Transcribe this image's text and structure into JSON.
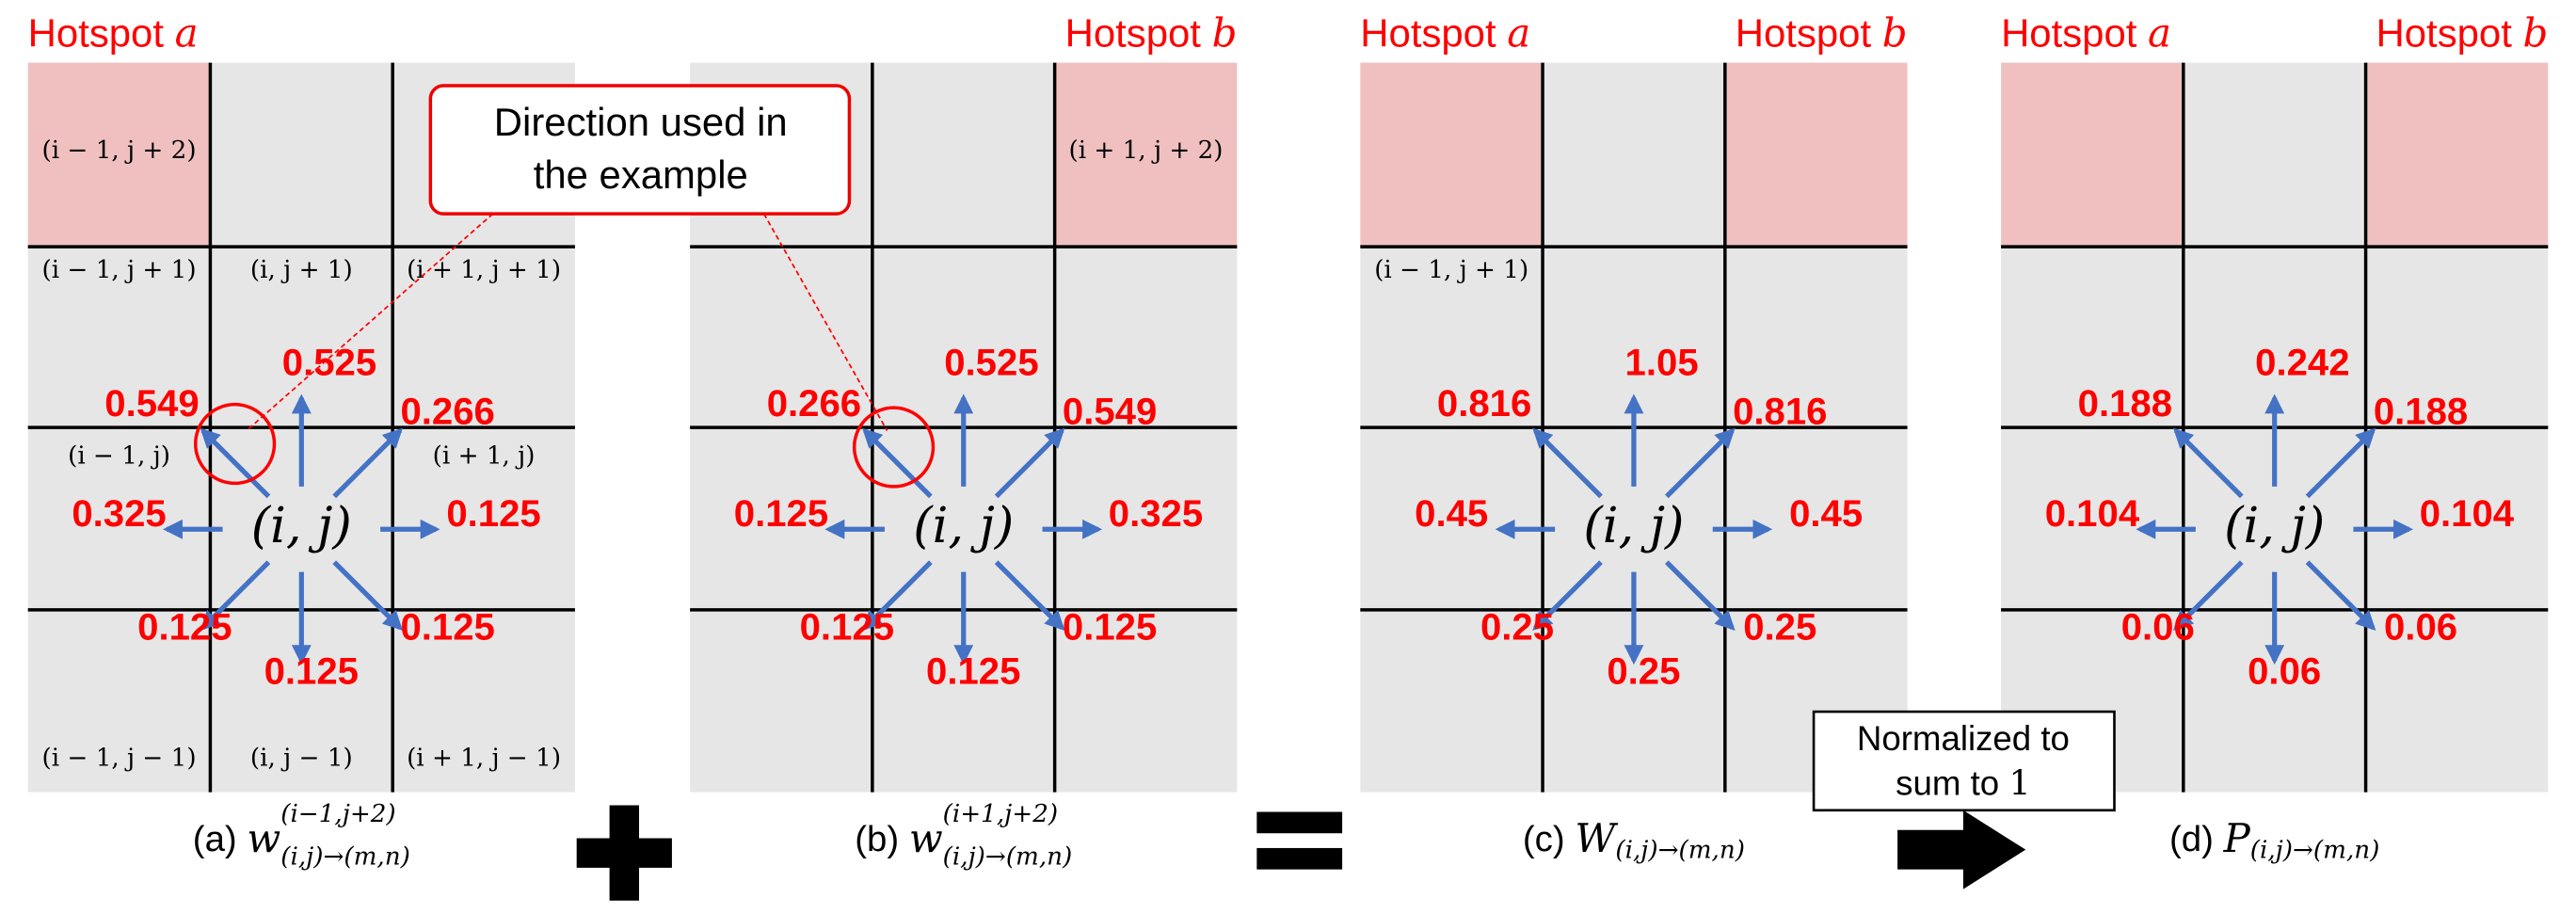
{
  "panels": [
    {
      "caption": {
        "prefix": "(a)",
        "symbol": "w",
        "sup": "(i−1,j+2)",
        "sub": "(i,j)→(m,n)"
      },
      "hotspots": [
        {
          "text": "Hotspot",
          "var": "a",
          "col": 0
        }
      ],
      "cell_labels": [
        {
          "text": "(i − 1, j + 2)",
          "col": 0,
          "row": 0
        },
        {
          "text": "(i − 1, j + 1)",
          "col": 0,
          "row": 1
        },
        {
          "text": "(i, j + 1)",
          "col": 1,
          "row": 1
        },
        {
          "text": "(i + 1, j + 1)",
          "col": 2,
          "row": 1
        },
        {
          "text": "(i − 1, j)",
          "col": 0,
          "row": 2
        },
        {
          "text": "(i + 1, j)",
          "col": 2,
          "row": 2
        },
        {
          "text": "(i − 1, j − 1)",
          "col": 0,
          "row": 3
        },
        {
          "text": "(i, j − 1)",
          "col": 1,
          "row": 3
        },
        {
          "text": "(i + 1, j − 1)",
          "col": 2,
          "row": 3
        }
      ],
      "center": "(i, j)",
      "values": [
        "0.525",
        "0.266",
        "0.125",
        "0.125",
        "0.125",
        "0.125",
        "0.325",
        "0.549"
      ]
    },
    {
      "caption": {
        "prefix": "(b)",
        "symbol": "w",
        "sup": "(i+1,j+2)",
        "sub": "(i,j)→(m,n)"
      },
      "hotspots": [
        {
          "text": "Hotspot",
          "var": "b",
          "col": 2
        }
      ],
      "cell_labels": [
        {
          "text": "(i + 1, j + 2)",
          "col": 2,
          "row": 0
        }
      ],
      "center": "(i, j)",
      "values": [
        "0.525",
        "0.549",
        "0.325",
        "0.125",
        "0.125",
        "0.125",
        "0.125",
        "0.266"
      ]
    },
    {
      "caption": {
        "prefix": "(c)",
        "symbol": "W",
        "sup": "",
        "sub": "(i,j)→(m,n)"
      },
      "hotspots": [
        {
          "text": "Hotspot",
          "var": "a",
          "col": 0
        },
        {
          "text": "Hotspot",
          "var": "b",
          "col": 2
        }
      ],
      "cell_labels": [
        {
          "text": "(i − 1, j + 1)",
          "col": 0,
          "row": 1
        }
      ],
      "center": "(i, j)",
      "values": [
        "1.05",
        "0.816",
        "0.45",
        "0.25",
        "0.25",
        "0.25",
        "0.45",
        "0.816"
      ]
    },
    {
      "caption": {
        "prefix": "(d)",
        "symbol": "P",
        "sup": "",
        "sub": "(i,j)→(m,n)"
      },
      "hotspots": [
        {
          "text": "Hotspot",
          "var": "a",
          "col": 0
        },
        {
          "text": "Hotspot",
          "var": "b",
          "col": 2
        }
      ],
      "cell_labels": [],
      "center": "(i, j)",
      "values": [
        "0.242",
        "0.188",
        "0.104",
        "0.06",
        "0.06",
        "0.06",
        "0.104",
        "0.188"
      ]
    }
  ],
  "callout": {
    "line1": "Direction used in",
    "line2": "the example"
  },
  "normalize": {
    "line1": "Normalized to",
    "line2": "sum to",
    "num": "1"
  }
}
